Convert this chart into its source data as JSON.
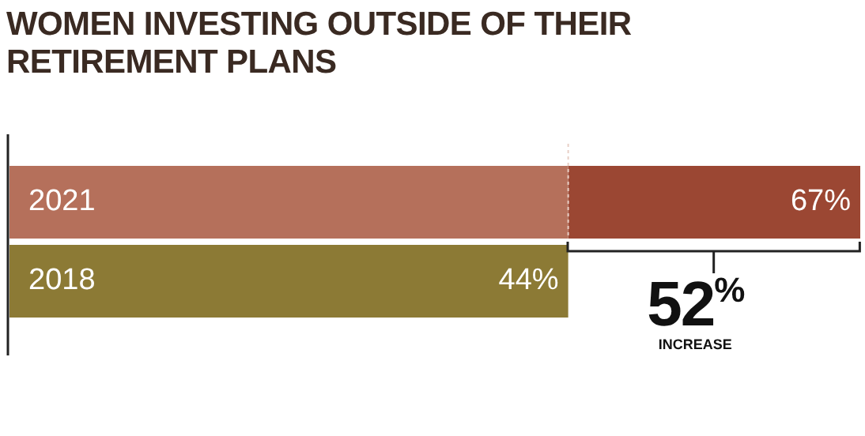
{
  "chart_data": {
    "type": "bar",
    "title": "WOMEN INVESTING OUTSIDE OF THEIR RETIREMENT PLANS",
    "orientation": "horizontal",
    "stacked": true,
    "tick_labels": false,
    "categories": [
      "2021",
      "2018"
    ],
    "series": [
      {
        "colors": [
          "#b5705b",
          "#8c7a35"
        ],
        "values": [
          44,
          44
        ],
        "value_labels": [
          null,
          "44%"
        ]
      },
      {
        "color": "#9b4733",
        "values": [
          23,
          null
        ]
      }
    ],
    "totals": [
      "67%",
      null
    ],
    "ref_lines": [
      {
        "axis": "x",
        "value": 44,
        "line_style": "dotted",
        "color": "#e8cfc6"
      }
    ],
    "annotations": [
      "52$^{%}$",
      "INCREASE"
    ]
  }
}
